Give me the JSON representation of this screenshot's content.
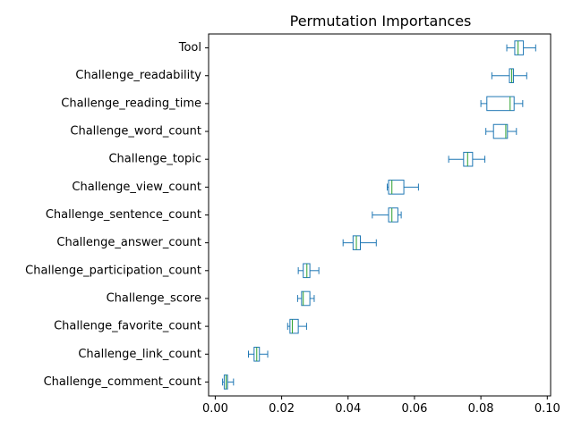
{
  "chart_data": {
    "type": "boxplot",
    "orientation": "horizontal",
    "title": "Permutation Importances",
    "xlabel": "",
    "ylabel": "",
    "xlim": [
      -0.002,
      0.101
    ],
    "xticks": [
      0.0,
      0.02,
      0.04,
      0.06,
      0.08,
      0.1
    ],
    "xtick_labels": [
      "0.00",
      "0.02",
      "0.04",
      "0.06",
      "0.08",
      "0.10"
    ],
    "grid": false,
    "legend": "none",
    "colors": {
      "box": "#1f77b4",
      "median": "#2ca02c",
      "frame": "#000000"
    },
    "categories": [
      "Tool",
      "Challenge_readability",
      "Challenge_reading_time",
      "Challenge_word_count",
      "Challenge_topic",
      "Challenge_view_count",
      "Challenge_sentence_count",
      "Challenge_answer_count",
      "Challenge_participation_count",
      "Challenge_score",
      "Challenge_favorite_count",
      "Challenge_link_count",
      "Challenge_comment_count"
    ],
    "boxes": [
      {
        "label": "Tool",
        "whislo": 0.0878,
        "q1": 0.0902,
        "med": 0.0912,
        "q3": 0.0928,
        "whishi": 0.0965
      },
      {
        "label": "Challenge_readability",
        "whislo": 0.0833,
        "q1": 0.0886,
        "med": 0.0893,
        "q3": 0.0898,
        "whishi": 0.0938
      },
      {
        "label": "Challenge_reading_time",
        "whislo": 0.08,
        "q1": 0.0818,
        "med": 0.0888,
        "q3": 0.09,
        "whishi": 0.0926
      },
      {
        "label": "Challenge_word_count",
        "whislo": 0.0815,
        "q1": 0.0838,
        "med": 0.0875,
        "q3": 0.088,
        "whishi": 0.0907
      },
      {
        "label": "Challenge_topic",
        "whislo": 0.0703,
        "q1": 0.0748,
        "med": 0.076,
        "q3": 0.0775,
        "whishi": 0.0812
      },
      {
        "label": "Challenge_view_count",
        "whislo": 0.0518,
        "q1": 0.0522,
        "med": 0.0532,
        "q3": 0.0568,
        "whishi": 0.0612
      },
      {
        "label": "Challenge_sentence_count",
        "whislo": 0.0473,
        "q1": 0.0522,
        "med": 0.0532,
        "q3": 0.055,
        "whishi": 0.056
      },
      {
        "label": "Challenge_answer_count",
        "whislo": 0.0385,
        "q1": 0.0415,
        "med": 0.0425,
        "q3": 0.0437,
        "whishi": 0.0485
      },
      {
        "label": "Challenge_participation_count",
        "whislo": 0.025,
        "q1": 0.0265,
        "med": 0.0276,
        "q3": 0.0285,
        "whishi": 0.0312
      },
      {
        "label": "Challenge_score",
        "whislo": 0.0248,
        "q1": 0.026,
        "med": 0.0265,
        "q3": 0.0285,
        "whishi": 0.0298
      },
      {
        "label": "Challenge_favorite_count",
        "whislo": 0.0218,
        "q1": 0.0225,
        "med": 0.0232,
        "q3": 0.025,
        "whishi": 0.0275
      },
      {
        "label": "Challenge_link_count",
        "whislo": 0.01,
        "q1": 0.0117,
        "med": 0.0125,
        "q3": 0.0133,
        "whishi": 0.0158
      },
      {
        "label": "Challenge_comment_count",
        "whislo": 0.0022,
        "q1": 0.0027,
        "med": 0.0033,
        "q3": 0.0037,
        "whishi": 0.0055
      }
    ]
  }
}
